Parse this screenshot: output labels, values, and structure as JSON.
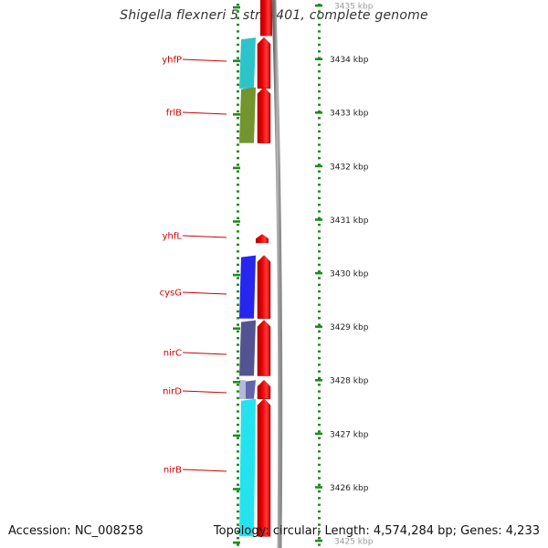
{
  "title": "Shigella flexneri 5 str. 8401, complete genome",
  "footer": {
    "accession": "Accession: NC_008258",
    "summary": "Topology: circular; Length: 4,574,284 bp; Genes: 4,233"
  },
  "colors": {
    "gene_arrow": "#e80000",
    "gene_label": "#cc0000",
    "tick": "#1e8c1e",
    "backbone": "#8c8c8c",
    "ruler_text": "#222222"
  },
  "ruler": {
    "unit": "kbp",
    "ticks": [
      {
        "label": "3435 kbp",
        "value": 3435
      },
      {
        "label": "3434 kbp",
        "value": 3434
      },
      {
        "label": "3433 kbp",
        "value": 3433
      },
      {
        "label": "3432 kbp",
        "value": 3432
      },
      {
        "label": "3431 kbp",
        "value": 3431
      },
      {
        "label": "3430 kbp",
        "value": 3430
      },
      {
        "label": "3429 kbp",
        "value": 3429
      },
      {
        "label": "3428 kbp",
        "value": 3428
      },
      {
        "label": "3427 kbp",
        "value": 3427
      },
      {
        "label": "3426 kbp",
        "value": 3426
      },
      {
        "label": "3425 kbp",
        "value": 3425
      }
    ]
  },
  "genes": [
    {
      "name": "yhfP",
      "start": 3433.45,
      "end": 3434.4,
      "feature_color": "#22c1c6"
    },
    {
      "name": "frlB",
      "start": 3432.43,
      "end": 3433.47,
      "feature_color": "#6b8e23"
    },
    {
      "name": "yhfL",
      "start": 3430.56,
      "end": 3430.73,
      "feature_color": null
    },
    {
      "name": "cysG",
      "start": 3429.15,
      "end": 3430.33,
      "feature_color": "#1a1aee"
    },
    {
      "name": "nirC",
      "start": 3428.08,
      "end": 3429.12,
      "feature_color": "#4a4a8c"
    },
    {
      "name": "nirD",
      "start": 3427.65,
      "end": 3428.0,
      "feature_color": "#5c5ca8"
    },
    {
      "name": "nirB",
      "start": 3425.08,
      "end": 3427.65,
      "feature_color": "#19e0ee"
    }
  ],
  "top_fragment": {
    "start": 3434.43,
    "end": 3435.15
  }
}
